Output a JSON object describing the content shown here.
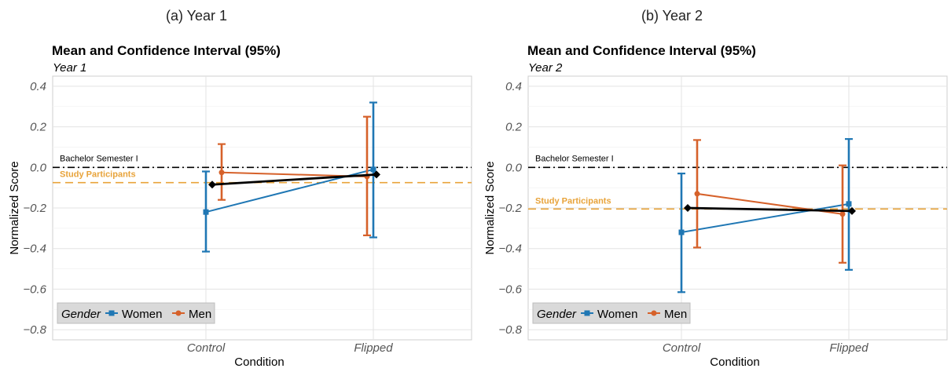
{
  "chart_data": [
    {
      "type": "line",
      "subfigure": "(a) Year 1",
      "title": "Mean and Confidence Interval (95%)",
      "subtitle": "Year 1",
      "xlabel": "Condition",
      "ylabel": "Normalized Score",
      "categories": [
        "Control",
        "Flipped"
      ],
      "yticks": [
        "0.4",
        "0.2",
        "0.0",
        "−0.2",
        "−0.4",
        "−0.6",
        "−0.8"
      ],
      "ylim": [
        -0.85,
        0.45
      ],
      "grid": true,
      "legend": {
        "title": "Gender",
        "placement": "bottom-left",
        "entries": [
          "Women",
          "Men"
        ]
      },
      "series": [
        {
          "name": "Women",
          "color": "#1f77b4",
          "marker": "square",
          "values": [
            -0.22,
            -0.01
          ],
          "ci_low": [
            -0.415,
            -0.345
          ],
          "ci_high": [
            -0.02,
            0.32
          ]
        },
        {
          "name": "Men",
          "color": "#d6612a",
          "marker": "circle",
          "values": [
            -0.025,
            -0.045
          ],
          "ci_low": [
            -0.16,
            -0.335
          ],
          "ci_high": [
            0.115,
            0.25
          ]
        },
        {
          "color": "#000000",
          "marker": "diamond",
          "values": [
            -0.085,
            -0.035
          ]
        }
      ],
      "reference_lines": [
        {
          "label": "Bachelor Semester I",
          "value": 0.0,
          "color": "#000000",
          "style": "dashdot"
        },
        {
          "label": "Study Participants",
          "value": -0.075,
          "color": "#e8a33a",
          "style": "dashed"
        }
      ]
    },
    {
      "type": "line",
      "subfigure": "(b) Year 2",
      "title": "Mean and Confidence Interval (95%)",
      "subtitle": "Year 2",
      "xlabel": "Condition",
      "ylabel": "Normalized Score",
      "categories": [
        "Control",
        "Flipped"
      ],
      "yticks": [
        "0.4",
        "0.2",
        "0.0",
        "−0.2",
        "−0.4",
        "−0.6",
        "−0.8"
      ],
      "ylim": [
        -0.85,
        0.45
      ],
      "grid": true,
      "legend": {
        "title": "Gender",
        "placement": "bottom-left",
        "entries": [
          "Women",
          "Men"
        ]
      },
      "series": [
        {
          "name": "Women",
          "color": "#1f77b4",
          "marker": "square",
          "values": [
            -0.32,
            -0.18
          ],
          "ci_low": [
            -0.615,
            -0.505
          ],
          "ci_high": [
            -0.03,
            0.14
          ]
        },
        {
          "name": "Men",
          "color": "#d6612a",
          "marker": "circle",
          "values": [
            -0.13,
            -0.23
          ],
          "ci_low": [
            -0.395,
            -0.47
          ],
          "ci_high": [
            0.135,
            0.01
          ]
        },
        {
          "color": "#000000",
          "marker": "diamond",
          "values": [
            -0.2,
            -0.215
          ]
        }
      ],
      "reference_lines": [
        {
          "label": "Bachelor Semester I",
          "value": 0.0,
          "color": "#000000",
          "style": "dashdot"
        },
        {
          "label": "Study Participants",
          "value": -0.205,
          "color": "#e8a33a",
          "style": "dashed"
        }
      ]
    }
  ]
}
